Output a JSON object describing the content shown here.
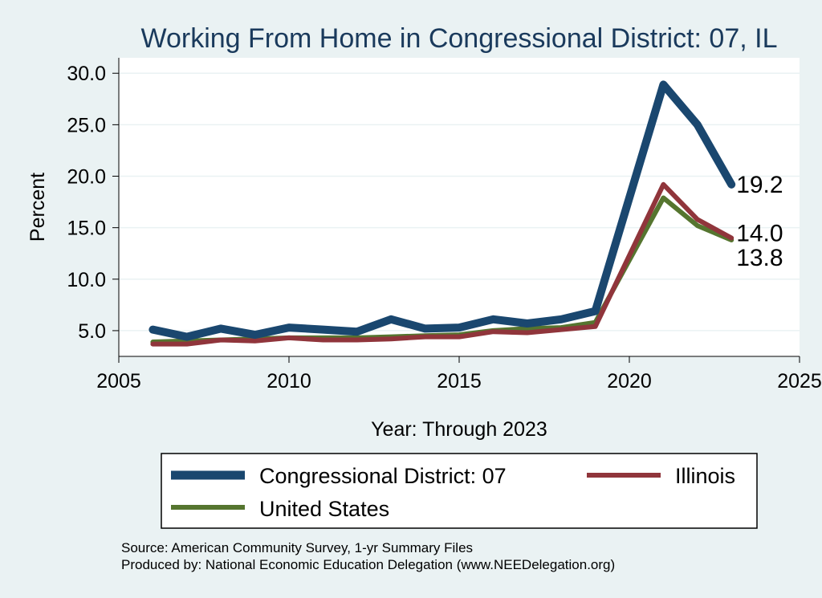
{
  "chart_data": {
    "type": "line",
    "title": "Working From Home in Congressional District: 07, IL",
    "xlabel": "Year: Through 2023",
    "ylabel": "Percent",
    "xlim": [
      2005,
      2025
    ],
    "ylim": [
      2.5,
      31.5
    ],
    "xticks": [
      2005,
      2010,
      2015,
      2020,
      2025
    ],
    "yticks": [
      5.0,
      10.0,
      15.0,
      20.0,
      25.0,
      30.0
    ],
    "grid": true,
    "legend_position": "bottom",
    "x": [
      2006,
      2007,
      2008,
      2009,
      2010,
      2011,
      2012,
      2013,
      2014,
      2015,
      2016,
      2017,
      2018,
      2019,
      2021,
      2022,
      2023
    ],
    "series": [
      {
        "name": "Congressional District: 07",
        "color": "#1a476f",
        "values": [
          5.1,
          4.4,
          5.2,
          4.6,
          5.3,
          5.1,
          4.9,
          6.1,
          5.2,
          5.3,
          6.1,
          5.7,
          6.1,
          6.9,
          28.9,
          25.0,
          19.2
        ],
        "end_label": "19.2"
      },
      {
        "name": "Illinois",
        "color": "#90353b",
        "values": [
          3.7,
          3.7,
          4.1,
          4.0,
          4.3,
          4.1,
          4.1,
          4.2,
          4.4,
          4.4,
          4.9,
          4.8,
          5.1,
          5.4,
          19.2,
          15.8,
          14.0
        ],
        "end_label": "14.0"
      },
      {
        "name": "United States",
        "color": "#55752f",
        "values": [
          3.9,
          4.0,
          4.1,
          4.2,
          4.3,
          4.3,
          4.3,
          4.4,
          4.5,
          4.6,
          5.0,
          5.2,
          5.3,
          5.8,
          17.9,
          15.2,
          13.8
        ],
        "end_label": "13.8"
      }
    ]
  },
  "notes": {
    "source": "Source: American Community Survey, 1-yr Summary Files",
    "produced_by": "Produced by: National Economic Education Delegation (www.NEEDelegation.org)"
  }
}
